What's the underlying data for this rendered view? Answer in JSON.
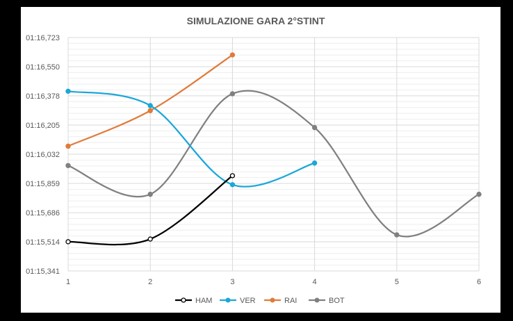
{
  "chart_data": {
    "type": "line",
    "title": "SIMULAZIONE GARA 2°STINT",
    "xlabel": "",
    "ylabel": "",
    "x": [
      1,
      2,
      3,
      4,
      5,
      6
    ],
    "x_tick_labels": [
      "1",
      "2",
      "3",
      "4",
      "5",
      "6"
    ],
    "ylim_seconds": [
      75.341,
      76.723
    ],
    "y_tick_seconds": [
      75.341,
      75.514,
      75.686,
      75.859,
      76.032,
      76.205,
      76.378,
      76.55,
      76.723
    ],
    "y_tick_labels": [
      "01:15,341",
      "01:15,514",
      "01:15,686",
      "01:15,859",
      "01:16,032",
      "01:16,205",
      "01:16,378",
      "01:16,550",
      "01:16,723"
    ],
    "grid": true,
    "smooth": true,
    "legend_position": "bottom",
    "series": [
      {
        "name": "HAM",
        "color": "#000000",
        "marker": "hollow-circle",
        "x": [
          1,
          2,
          3
        ],
        "values": [
          75.514,
          75.53,
          75.905
        ]
      },
      {
        "name": "VER",
        "color": "#1BA7D8",
        "marker": "filled-circle",
        "x": [
          1,
          2,
          3,
          4
        ],
        "values": [
          76.405,
          76.32,
          75.852,
          75.98
        ]
      },
      {
        "name": "RAI",
        "color": "#E07B39",
        "marker": "filled-circle",
        "x": [
          1,
          2,
          3
        ],
        "values": [
          76.08,
          76.29,
          76.62
        ]
      },
      {
        "name": "BOT",
        "color": "#808080",
        "marker": "filled-circle",
        "x": [
          1,
          2,
          3,
          4,
          5,
          6
        ],
        "values": [
          75.965,
          75.795,
          76.39,
          76.19,
          75.555,
          75.795
        ]
      }
    ]
  }
}
